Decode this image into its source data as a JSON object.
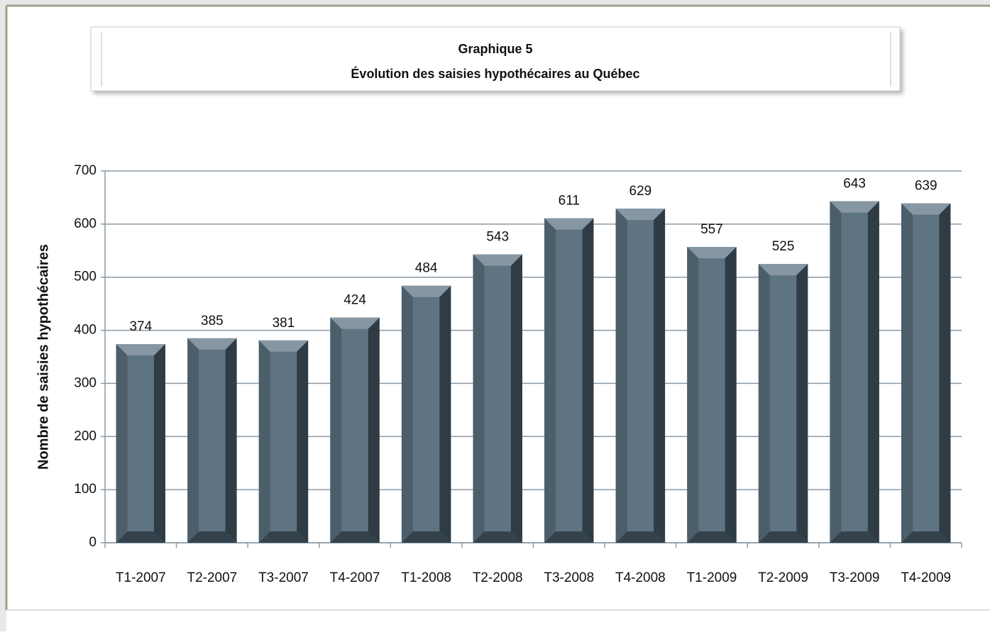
{
  "chart_data": {
    "type": "bar",
    "title": "Graphique 5",
    "subtitle": "Évolution des saisies hypothécaires au Québec",
    "y_label": "Nombre de saisies hypothécaires",
    "categories": [
      "T1-2007",
      "T2-2007",
      "T3-2007",
      "T4-2007",
      "T1-2008",
      "T2-2008",
      "T3-2008",
      "T4-2008",
      "T1-2009",
      "T2-2009",
      "T3-2009",
      "T4-2009"
    ],
    "values": [
      374,
      385,
      381,
      424,
      484,
      543,
      611,
      629,
      557,
      525,
      643,
      639
    ],
    "color": "#5f7482",
    "ylim": [
      0,
      700
    ],
    "yticks": [
      0,
      100,
      200,
      300,
      400,
      500,
      600,
      700
    ],
    "grid": true
  }
}
